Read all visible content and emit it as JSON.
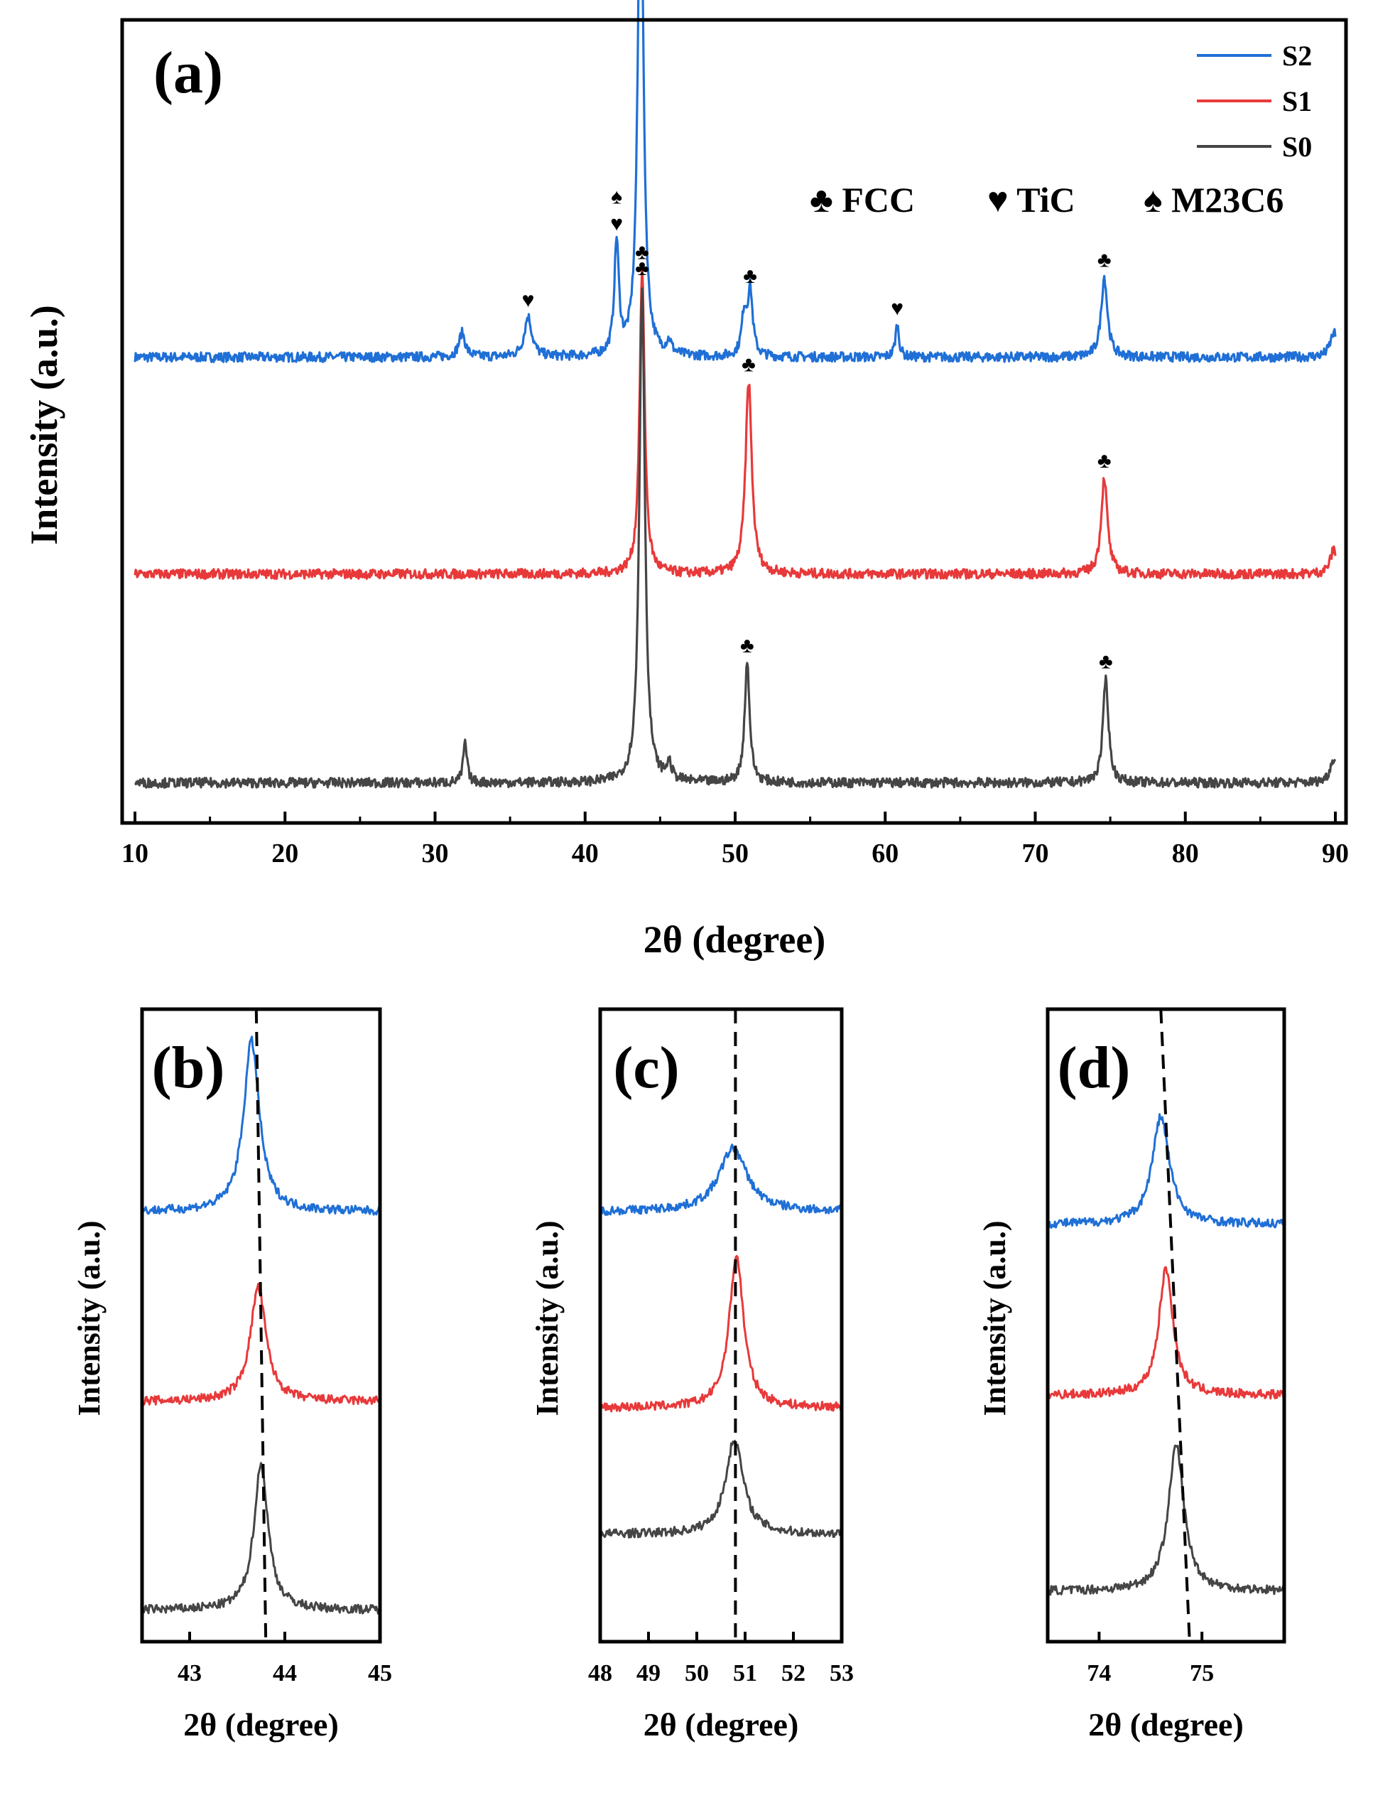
{
  "colors": {
    "S2": "#1f6fd6",
    "S1": "#e8393a",
    "S0": "#454545",
    "axis": "#000000"
  },
  "chart_data": [
    {
      "panel": "(a)",
      "type": "line",
      "xlabel": "2θ  (degree)",
      "ylabel": "Intensity (a.u.)",
      "xlim": [
        10,
        90
      ],
      "xticks": [
        "10",
        "20",
        "30",
        "40",
        "50",
        "60",
        "70",
        "80",
        "90"
      ],
      "legend": {
        "placement": "top-right",
        "entries": [
          "S2",
          "S1",
          "S0"
        ]
      },
      "phase_legend": [
        "♣  FCC",
        "♥  TiC",
        "♠  M23C6"
      ],
      "series": [
        {
          "name": "S2",
          "offset": 0.58,
          "peaks": [
            [
              31.8,
              0.03,
              0.25
            ],
            [
              36.2,
              0.05,
              0.3
            ],
            [
              42.1,
              0.14,
              0.18
            ],
            [
              43.7,
              0.65,
              0.22
            ],
            [
              45.6,
              0.015,
              0.2
            ],
            [
              50.6,
              0.05,
              0.2
            ],
            [
              51.0,
              0.08,
              0.2
            ],
            [
              60.8,
              0.04,
              0.15
            ],
            [
              74.6,
              0.1,
              0.25
            ],
            [
              89.9,
              0.03,
              0.3
            ]
          ],
          "markers": [
            {
              "x": 36.2,
              "sym": "♥"
            },
            {
              "x": 42.1,
              "sym": "♠/♥"
            },
            {
              "x": 43.7,
              "sym": "♣"
            },
            {
              "x": 51.0,
              "sym": "♣"
            },
            {
              "x": 60.8,
              "sym": "♥"
            },
            {
              "x": 74.6,
              "sym": "♣"
            }
          ]
        },
        {
          "name": "S1",
          "offset": 0.31,
          "peaks": [
            [
              43.8,
              0.38,
              0.2
            ],
            [
              50.9,
              0.24,
              0.25
            ],
            [
              74.6,
              0.12,
              0.25
            ],
            [
              89.9,
              0.03,
              0.3
            ]
          ],
          "markers": [
            {
              "x": 43.8,
              "sym": "♣"
            },
            {
              "x": 50.9,
              "sym": "♣"
            },
            {
              "x": 74.6,
              "sym": "♣"
            }
          ]
        },
        {
          "name": "S0",
          "offset": 0.05,
          "peaks": [
            [
              32.0,
              0.05,
              0.15
            ],
            [
              43.8,
              0.62,
              0.22
            ],
            [
              45.6,
              0.02,
              0.2
            ],
            [
              50.8,
              0.15,
              0.2
            ],
            [
              74.7,
              0.13,
              0.22
            ],
            [
              89.9,
              0.03,
              0.3
            ]
          ],
          "markers": [
            {
              "x": 43.8,
              "sym": "♣"
            },
            {
              "x": 50.8,
              "sym": "♣"
            },
            {
              "x": 74.7,
              "sym": "♣"
            }
          ]
        }
      ]
    },
    {
      "panel": "(b)",
      "type": "line",
      "xlabel": "2θ  (degree)",
      "ylabel": "Intensity (a.u.)",
      "xlim": [
        42.5,
        45
      ],
      "xticks": [
        "43",
        "44",
        "45"
      ],
      "guide_line": [
        [
          43.7,
          1.0
        ],
        [
          43.8,
          0.0
        ]
      ],
      "series": [
        {
          "name": "S2",
          "offset": 0.68,
          "peak_x": 43.65,
          "height": 0.27,
          "width": 0.2
        },
        {
          "name": "S1",
          "offset": 0.38,
          "peak_x": 43.72,
          "height": 0.18,
          "width": 0.2
        },
        {
          "name": "S0",
          "offset": 0.05,
          "peak_x": 43.75,
          "height": 0.23,
          "width": 0.18
        }
      ]
    },
    {
      "panel": "(c)",
      "type": "line",
      "xlabel": "2θ  (degree)",
      "ylabel": "Intensity (a.u.)",
      "xlim": [
        48,
        53
      ],
      "xticks": [
        "48",
        "49",
        "50",
        "51",
        "52",
        "53"
      ],
      "guide_line": [
        [
          50.8,
          1.0
        ],
        [
          50.8,
          0.0
        ]
      ],
      "series": [
        {
          "name": "S2",
          "offset": 0.68,
          "peak_x": 50.75,
          "height": 0.1,
          "width": 0.35
        },
        {
          "name": "S1",
          "offset": 0.37,
          "peak_x": 50.82,
          "height": 0.24,
          "width": 0.18
        },
        {
          "name": "S0",
          "offset": 0.17,
          "peak_x": 50.78,
          "height": 0.15,
          "width": 0.22
        }
      ]
    },
    {
      "panel": "(d)",
      "type": "line",
      "xlabel": "2θ  (degree)",
      "ylabel": "Intensity (a.u.)",
      "xlim": [
        73.5,
        75.8
      ],
      "xticks": [
        "74",
        "75"
      ],
      "guide_line": [
        [
          74.6,
          1.0
        ],
        [
          74.88,
          0.0
        ]
      ],
      "series": [
        {
          "name": "S2",
          "offset": 0.66,
          "peak_x": 74.6,
          "height": 0.17,
          "width": 0.22
        },
        {
          "name": "S1",
          "offset": 0.39,
          "peak_x": 74.65,
          "height": 0.2,
          "width": 0.18
        },
        {
          "name": "S0",
          "offset": 0.08,
          "peak_x": 74.75,
          "height": 0.23,
          "width": 0.2
        }
      ]
    }
  ]
}
